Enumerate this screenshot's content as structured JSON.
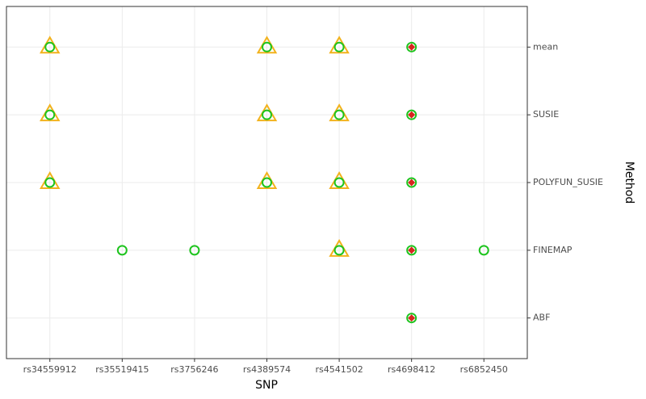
{
  "chart_data": {
    "type": "dotplot",
    "x_label": "SNP",
    "y_label": "Method",
    "x_categories": [
      "rs34559912",
      "rs35519415",
      "rs3756246",
      "rs4389574",
      "rs4541502",
      "rs4698412",
      "rs6852450"
    ],
    "y_categories": [
      "ABF",
      "FINEMAP",
      "POLYFUN_SUSIE",
      "SUSIE",
      "mean"
    ],
    "grid": true,
    "series": [
      {
        "marker": "triangle",
        "color": "#f2b21c",
        "points": [
          [
            "rs34559912",
            "mean"
          ],
          [
            "rs34559912",
            "SUSIE"
          ],
          [
            "rs34559912",
            "POLYFUN_SUSIE"
          ],
          [
            "rs4389574",
            "mean"
          ],
          [
            "rs4389574",
            "SUSIE"
          ],
          [
            "rs4389574",
            "POLYFUN_SUSIE"
          ],
          [
            "rs4541502",
            "mean"
          ],
          [
            "rs4541502",
            "SUSIE"
          ],
          [
            "rs4541502",
            "POLYFUN_SUSIE"
          ],
          [
            "rs4541502",
            "FINEMAP"
          ]
        ]
      },
      {
        "marker": "circle",
        "color": "#1ec41e",
        "points": [
          [
            "rs34559912",
            "mean"
          ],
          [
            "rs34559912",
            "SUSIE"
          ],
          [
            "rs34559912",
            "POLYFUN_SUSIE"
          ],
          [
            "rs35519415",
            "FINEMAP"
          ],
          [
            "rs3756246",
            "FINEMAP"
          ],
          [
            "rs4389574",
            "mean"
          ],
          [
            "rs4389574",
            "SUSIE"
          ],
          [
            "rs4389574",
            "POLYFUN_SUSIE"
          ],
          [
            "rs4541502",
            "mean"
          ],
          [
            "rs4541502",
            "SUSIE"
          ],
          [
            "rs4541502",
            "POLYFUN_SUSIE"
          ],
          [
            "rs4541502",
            "FINEMAP"
          ],
          [
            "rs4698412",
            "mean"
          ],
          [
            "rs4698412",
            "SUSIE"
          ],
          [
            "rs4698412",
            "POLYFUN_SUSIE"
          ],
          [
            "rs4698412",
            "FINEMAP"
          ],
          [
            "rs4698412",
            "ABF"
          ],
          [
            "rs6852450",
            "FINEMAP"
          ]
        ]
      },
      {
        "marker": "diamond",
        "color": "#d7261e",
        "points": [
          [
            "rs4698412",
            "mean"
          ],
          [
            "rs4698412",
            "SUSIE"
          ],
          [
            "rs4698412",
            "POLYFUN_SUSIE"
          ],
          [
            "rs4698412",
            "FINEMAP"
          ],
          [
            "rs4698412",
            "ABF"
          ]
        ]
      }
    ]
  }
}
